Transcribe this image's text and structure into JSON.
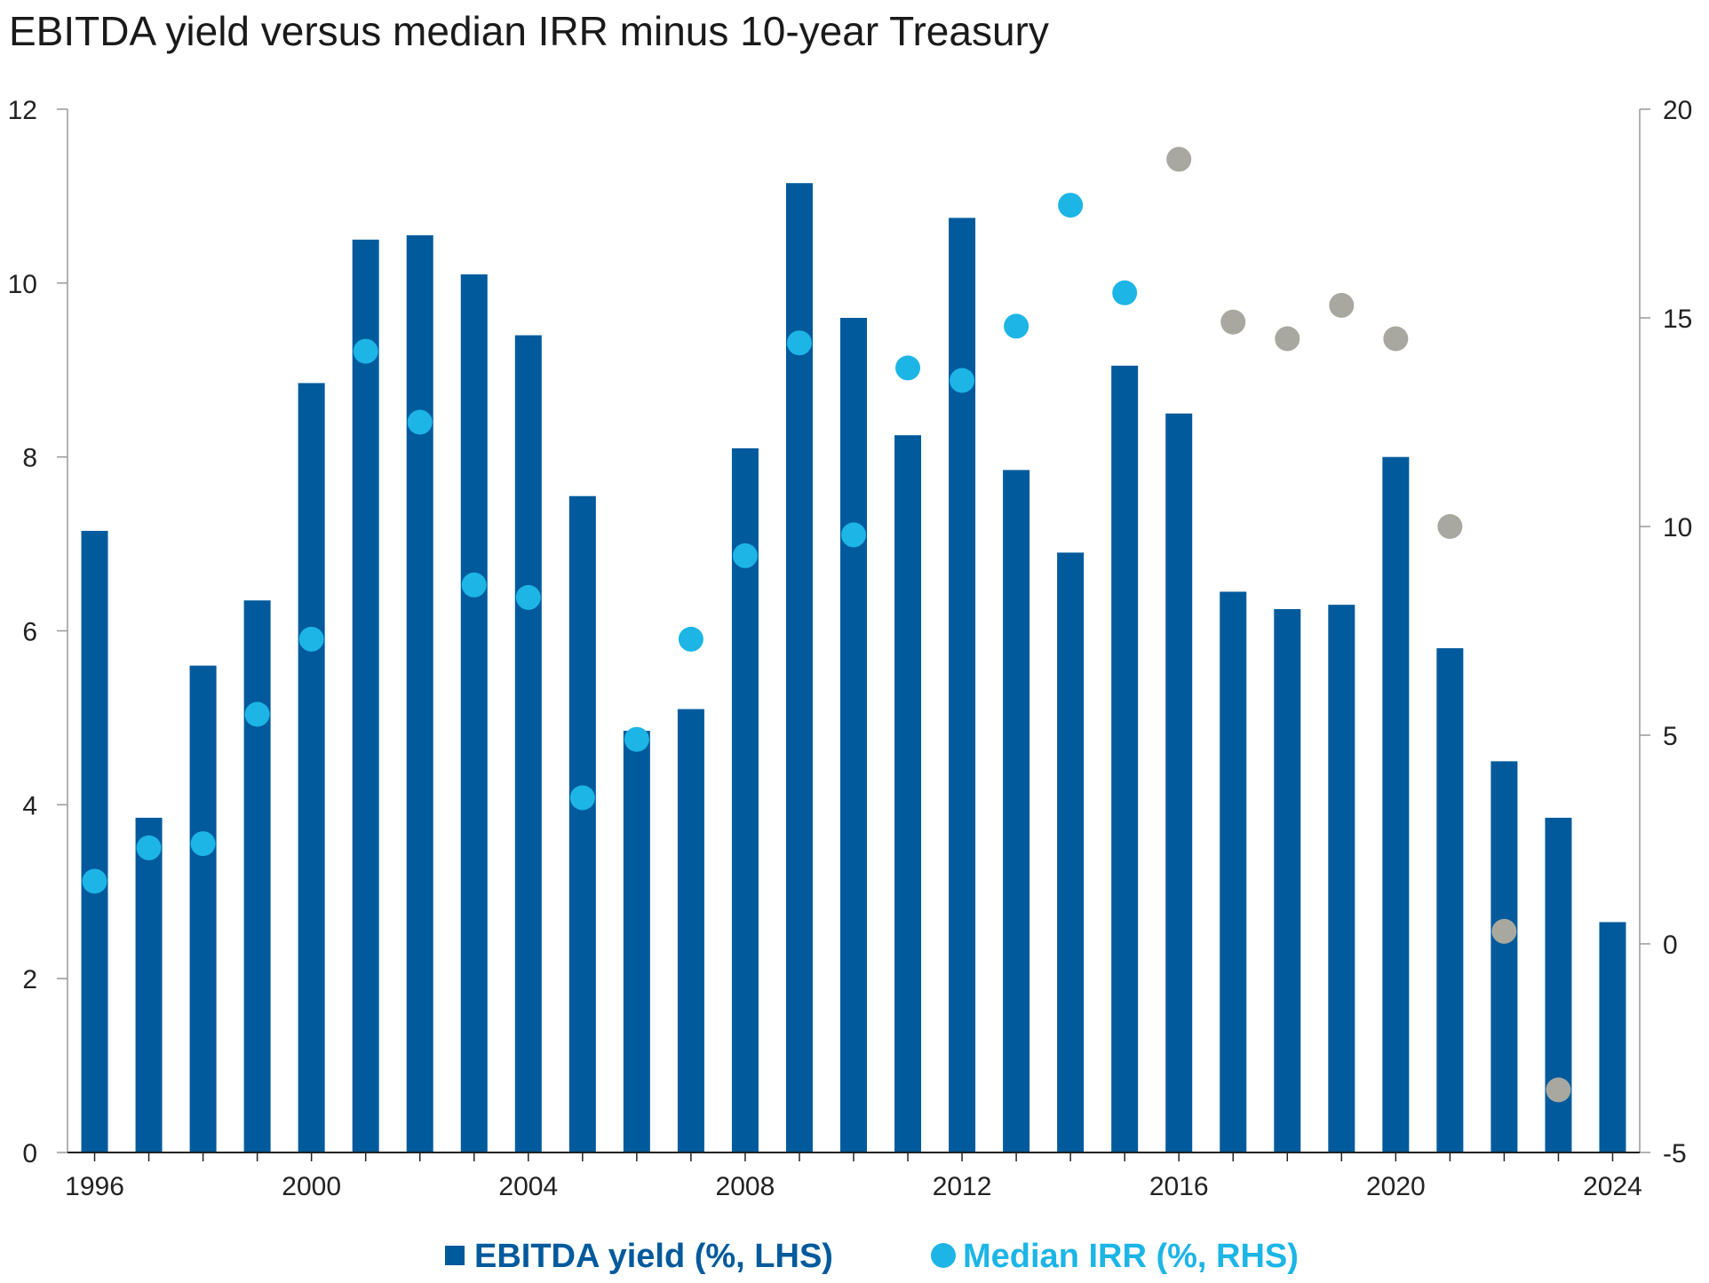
{
  "chart_data": {
    "type": "bar",
    "title": "EBITDA yield versus median IRR minus 10-year Treasury",
    "xlabel": "",
    "ylabel": "",
    "categories": [
      "1996",
      "1997",
      "1998",
      "1999",
      "2000",
      "2001",
      "2002",
      "2003",
      "2004",
      "2005",
      "2006",
      "2007",
      "2008",
      "2009",
      "2010",
      "2011",
      "2012",
      "2013",
      "2014",
      "2015",
      "2016",
      "2017",
      "2018",
      "2019",
      "2020",
      "2021",
      "2022",
      "2023",
      "2024"
    ],
    "x_tick_labels": [
      "1996",
      "2000",
      "2004",
      "2008",
      "2012",
      "2016",
      "2020",
      "2024"
    ],
    "series": [
      {
        "name": "EBITDA yield (%, LHS)",
        "kind": "bar",
        "axis": "left",
        "color": "#015a9c",
        "values": [
          7.15,
          3.85,
          5.6,
          6.35,
          8.85,
          10.5,
          10.55,
          10.1,
          9.4,
          7.55,
          4.85,
          5.1,
          8.1,
          11.15,
          9.6,
          8.25,
          10.75,
          7.85,
          6.9,
          9.05,
          8.5,
          6.45,
          6.25,
          6.3,
          8.0,
          5.8,
          4.5,
          3.85,
          2.65
        ]
      },
      {
        "name": "Median IRR (%, RHS)",
        "kind": "scatter",
        "axis": "right",
        "color": "#1cb5e6",
        "faded_color": "#a8a8a0",
        "values": [
          1.5,
          2.3,
          2.4,
          5.5,
          7.3,
          14.2,
          12.5,
          8.6,
          8.3,
          3.5,
          4.9,
          7.3,
          9.3,
          14.4,
          9.8,
          13.8,
          13.5,
          14.8,
          17.7,
          15.6,
          18.8,
          14.9,
          14.5,
          15.3,
          14.5,
          10.0,
          0.3,
          -3.5,
          null
        ],
        "faded_from": "2016"
      }
    ],
    "y_left": {
      "ylim": [
        0,
        12
      ],
      "ticks": [
        0,
        2,
        4,
        6,
        8,
        10,
        12
      ],
      "tick_labels": [
        "0",
        "2",
        "4",
        "6",
        "8",
        "10",
        "12"
      ]
    },
    "y_right": {
      "ylim": [
        -5,
        20
      ],
      "ticks": [
        -5,
        0,
        5,
        10,
        15,
        20
      ],
      "tick_labels": [
        "-5",
        "0",
        "5",
        "10",
        "15",
        "20"
      ]
    },
    "grid": false,
    "legend_position": "bottom-center"
  }
}
